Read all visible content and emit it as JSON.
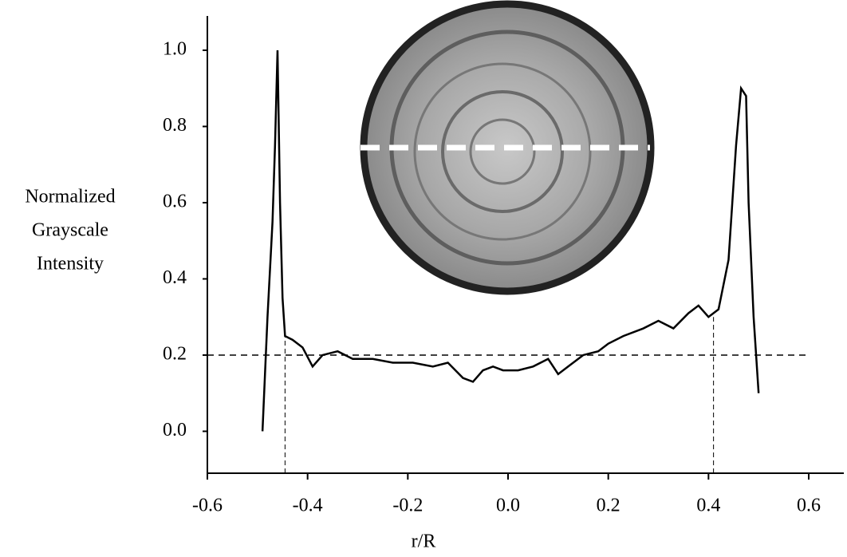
{
  "chart_data": {
    "type": "line",
    "xlabel": "r/R",
    "ylabel": [
      "Normalized",
      "Grayscale",
      "Intensity"
    ],
    "color": "#000000",
    "x": [
      -0.49,
      -0.485,
      -0.48,
      -0.47,
      -0.465,
      -0.46,
      -0.455,
      -0.45,
      -0.445,
      -0.43,
      -0.41,
      -0.39,
      -0.37,
      -0.34,
      -0.31,
      -0.27,
      -0.23,
      -0.19,
      -0.15,
      -0.12,
      -0.09,
      -0.07,
      -0.05,
      -0.03,
      -0.01,
      0.02,
      0.05,
      0.08,
      0.1,
      0.12,
      0.15,
      0.18,
      0.2,
      0.23,
      0.27,
      0.3,
      0.33,
      0.36,
      0.38,
      0.4,
      0.42,
      0.44,
      0.455,
      0.465,
      0.475,
      0.48,
      0.49,
      0.5
    ],
    "values": [
      0.0,
      0.15,
      0.3,
      0.55,
      0.75,
      1.0,
      0.6,
      0.35,
      0.25,
      0.24,
      0.22,
      0.17,
      0.2,
      0.21,
      0.19,
      0.19,
      0.18,
      0.18,
      0.17,
      0.18,
      0.14,
      0.13,
      0.16,
      0.17,
      0.16,
      0.16,
      0.17,
      0.19,
      0.15,
      0.17,
      0.2,
      0.21,
      0.23,
      0.25,
      0.27,
      0.29,
      0.27,
      0.31,
      0.33,
      0.3,
      0.32,
      0.45,
      0.75,
      0.9,
      0.88,
      0.6,
      0.3,
      0.1
    ],
    "xlim": [
      -0.6,
      0.67
    ],
    "ylim": [
      -0.11,
      1.09
    ],
    "xticks": [
      -0.6,
      -0.4,
      -0.2,
      {
        "value": 0,
        "label": "0.0"
      },
      0.2,
      0.4,
      0.6
    ],
    "yticks": [
      {
        "value": 0,
        "label": "0.0"
      },
      0.2,
      0.4,
      0.6,
      0.8,
      {
        "value": 1,
        "label": "1.0"
      }
    ],
    "reference_lines": [
      {
        "orientation": "h",
        "value": 0.2,
        "from": -0.6,
        "to": 0.6
      },
      {
        "orientation": "v",
        "value": -0.445,
        "from": -0.11,
        "to": 0.25
      },
      {
        "orientation": "v",
        "value": 0.41,
        "from": -0.11,
        "to": 0.3
      }
    ]
  }
}
